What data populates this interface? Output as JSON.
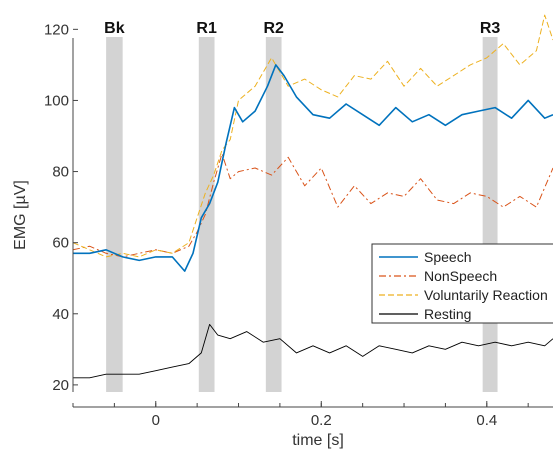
{
  "chart_data": {
    "type": "line",
    "xlabel": "time [s]",
    "ylabel": "EMG [µV]",
    "xlim": [
      -0.1,
      0.48
    ],
    "ylim": [
      18,
      126
    ],
    "x_ticks": [
      0,
      0.2,
      0.4
    ],
    "x_tick_labels": [
      "0",
      "0.2",
      "0.4"
    ],
    "y_ticks": [
      20,
      40,
      60,
      80,
      100,
      120
    ],
    "y_tick_labels": [
      "20",
      "40",
      "60",
      "80",
      "100",
      "120"
    ],
    "grid": false,
    "legend_position": "center-right",
    "bands": [
      {
        "label": "Bk",
        "x_start": -0.06,
        "x_end": -0.04
      },
      {
        "label": "R1",
        "x_start": 0.052,
        "x_end": 0.071
      },
      {
        "label": "R2",
        "x_start": 0.133,
        "x_end": 0.152
      },
      {
        "label": "R3",
        "x_start": 0.395,
        "x_end": 0.413
      }
    ],
    "series": [
      {
        "name": "Speech",
        "color": "#0072bd",
        "dash": "solid",
        "width": 1.6,
        "x": [
          -0.1,
          -0.08,
          -0.06,
          -0.04,
          -0.02,
          0.0,
          0.02,
          0.035,
          0.045,
          0.055,
          0.065,
          0.075,
          0.085,
          0.095,
          0.105,
          0.12,
          0.135,
          0.145,
          0.155,
          0.17,
          0.19,
          0.21,
          0.23,
          0.25,
          0.27,
          0.29,
          0.31,
          0.33,
          0.35,
          0.37,
          0.39,
          0.41,
          0.43,
          0.45,
          0.47,
          0.48
        ],
        "values": [
          57,
          57,
          58,
          56,
          55,
          56,
          56,
          52,
          57,
          67,
          71,
          77,
          88,
          98,
          94,
          97,
          104,
          110,
          107,
          101,
          96,
          95,
          99,
          96,
          93,
          98,
          94,
          96,
          93,
          96,
          97,
          98,
          95,
          100,
          95,
          96
        ]
      },
      {
        "name": "NonSpeech",
        "color": "#d95319",
        "dash": "dashdot",
        "width": 1.0,
        "x": [
          -0.1,
          -0.08,
          -0.06,
          -0.04,
          -0.02,
          0.0,
          0.02,
          0.04,
          0.05,
          0.06,
          0.07,
          0.08,
          0.09,
          0.1,
          0.12,
          0.14,
          0.16,
          0.18,
          0.2,
          0.22,
          0.24,
          0.26,
          0.28,
          0.3,
          0.32,
          0.34,
          0.36,
          0.38,
          0.4,
          0.42,
          0.44,
          0.46,
          0.48
        ],
        "values": [
          58,
          59,
          57,
          56,
          57,
          58,
          57,
          59,
          63,
          68,
          77,
          85,
          78,
          80,
          81,
          79,
          84,
          76,
          81,
          70,
          76,
          71,
          74,
          73,
          78,
          72,
          71,
          74,
          73,
          70,
          73,
          70,
          81
        ]
      },
      {
        "name": "Voluntarily Reaction",
        "color": "#edb120",
        "dash": "dashed",
        "width": 1.0,
        "x": [
          -0.1,
          -0.08,
          -0.06,
          -0.04,
          -0.02,
          0.0,
          0.02,
          0.04,
          0.05,
          0.06,
          0.07,
          0.08,
          0.09,
          0.1,
          0.12,
          0.14,
          0.16,
          0.18,
          0.2,
          0.22,
          0.24,
          0.26,
          0.28,
          0.3,
          0.32,
          0.34,
          0.36,
          0.38,
          0.4,
          0.42,
          0.44,
          0.46,
          0.47,
          0.48
        ],
        "values": [
          60,
          58,
          56,
          57,
          56,
          58,
          57,
          60,
          67,
          74,
          79,
          86,
          89,
          100,
          104,
          112,
          104,
          106,
          103,
          101,
          107,
          106,
          111,
          104,
          109,
          104,
          107,
          110,
          112,
          116,
          110,
          114,
          124,
          117
        ]
      },
      {
        "name": "Resting",
        "color": "#000000",
        "dash": "solid",
        "width": 0.9,
        "x": [
          -0.1,
          -0.08,
          -0.06,
          -0.04,
          -0.02,
          0.0,
          0.02,
          0.04,
          0.055,
          0.065,
          0.075,
          0.09,
          0.11,
          0.13,
          0.15,
          0.17,
          0.19,
          0.21,
          0.23,
          0.25,
          0.27,
          0.29,
          0.31,
          0.33,
          0.35,
          0.37,
          0.39,
          0.41,
          0.43,
          0.45,
          0.47,
          0.48
        ],
        "values": [
          22,
          22,
          23,
          23,
          23,
          24,
          25,
          26,
          29,
          37,
          34,
          33,
          35,
          32,
          33,
          29,
          31,
          29,
          31,
          28,
          31,
          30,
          29,
          31,
          30,
          32,
          31,
          32,
          31,
          32,
          31,
          33
        ]
      }
    ]
  }
}
